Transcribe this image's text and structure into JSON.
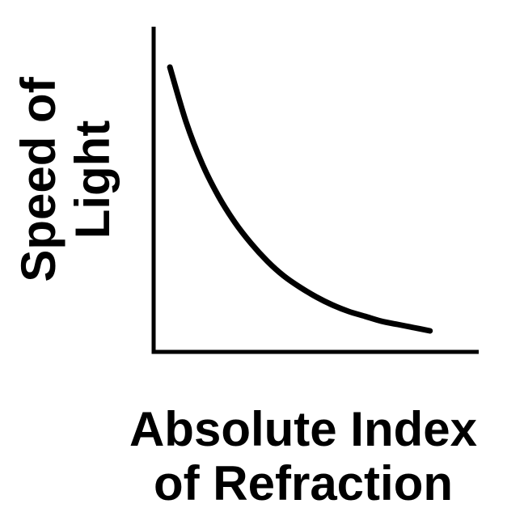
{
  "chart_data": {
    "type": "line",
    "xlabel": [
      "Absolute Index",
      "of Refraction"
    ],
    "ylabel": [
      "Speed of",
      "Light"
    ],
    "ticks": "none",
    "grid": false,
    "legend": "none",
    "series": [
      {
        "x": [
          0.05,
          0.1,
          0.15,
          0.2,
          0.25,
          0.3,
          0.35,
          0.4,
          0.45,
          0.5,
          0.55,
          0.6,
          0.65,
          0.7,
          0.75,
          0.8,
          0.85
        ],
        "y": [
          0.88,
          0.71,
          0.58,
          0.48,
          0.4,
          0.335,
          0.28,
          0.235,
          0.2,
          0.17,
          0.145,
          0.125,
          0.11,
          0.095,
          0.085,
          0.075,
          0.065
        ]
      }
    ],
    "xlim": [
      0,
      1
    ],
    "ylim": [
      0,
      1
    ],
    "colors": {
      "line": "#000000",
      "axes": "#000000",
      "background": "#ffffff"
    }
  }
}
